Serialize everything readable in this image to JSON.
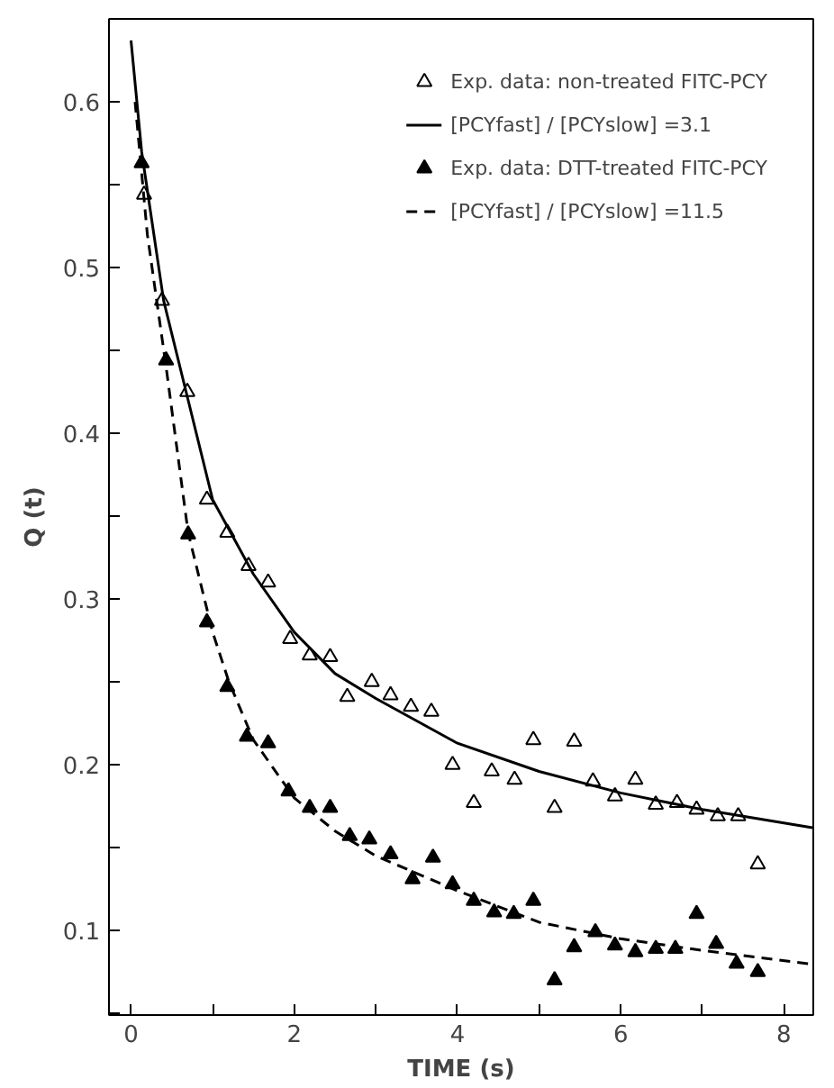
{
  "chart_data": {
    "type": "scatter",
    "xlabel": "TIME (s)",
    "ylabel": "Q (t)",
    "xlim": [
      -0.27,
      8.36
    ],
    "ylim": [
      0.049,
      0.65
    ],
    "xticks": [
      0,
      {
        "value": 1,
        "label": null
      },
      2,
      {
        "value": 3,
        "label": null
      },
      4,
      {
        "value": 5,
        "label": null
      },
      6,
      {
        "value": 7,
        "label": null
      },
      8
    ],
    "yticks": [
      {
        "value": 0.05,
        "label": null
      },
      0.1,
      {
        "value": 0.15,
        "label": null
      },
      0.2,
      {
        "value": 0.25,
        "label": null
      },
      0.3,
      {
        "value": 0.35,
        "label": null
      },
      0.4,
      {
        "value": 0.45,
        "label": null
      },
      0.5,
      {
        "value": 0.55,
        "label": null
      },
      0.6
    ],
    "grid": false,
    "legend": "top right",
    "series": [
      {
        "name": "Exp. data: non-treated FITC-PCY",
        "marker": "triangle",
        "color": "#000000",
        "x": [
          0.16,
          0.38,
          0.69,
          0.93,
          1.18,
          1.44,
          1.68,
          1.95,
          2.19,
          2.44,
          2.65,
          2.95,
          3.18,
          3.43,
          3.68,
          3.94,
          4.2,
          4.42,
          4.7,
          4.93,
          5.19,
          5.43,
          5.66,
          5.93,
          6.18,
          6.43,
          6.69,
          6.93,
          7.19,
          7.44,
          7.68
        ],
        "values": [
          0.544,
          0.48,
          0.425,
          0.36,
          0.34,
          0.32,
          0.31,
          0.276,
          0.266,
          0.265,
          0.241,
          0.25,
          0.242,
          0.235,
          0.232,
          0.2,
          0.177,
          0.196,
          0.191,
          0.215,
          0.174,
          0.214,
          0.19,
          0.181,
          0.191,
          0.176,
          0.177,
          0.173,
          0.169,
          0.169,
          0.14
        ]
      },
      {
        "name": "[PCYfast] / [PCYslow] =3.1",
        "type": "line",
        "line_style": "solid",
        "color": "#000000",
        "x": [
          0,
          0.13,
          0.4,
          0.7,
          1,
          1.5,
          2,
          2.5,
          3,
          4,
          5,
          6,
          7,
          8.35
        ],
        "values": [
          0.637,
          0.57,
          0.48,
          0.42,
          0.36,
          0.315,
          0.28,
          0.255,
          0.24,
          0.213,
          0.196,
          0.183,
          0.173,
          0.162
        ]
      },
      {
        "name": "Exp. data: DTT-treated FITC-PCY",
        "marker": "triangle",
        "color": "#000000",
        "x": [
          0.13,
          0.43,
          0.7,
          0.93,
          1.18,
          1.42,
          1.68,
          1.93,
          2.19,
          2.44,
          2.68,
          2.92,
          3.18,
          3.45,
          3.7,
          3.94,
          4.2,
          4.45,
          4.69,
          4.93,
          5.19,
          5.43,
          5.69,
          5.93,
          6.18,
          6.43,
          6.67,
          6.93,
          7.17,
          7.42,
          7.68
        ],
        "values": [
          0.563,
          0.444,
          0.339,
          0.286,
          0.247,
          0.217,
          0.213,
          0.184,
          0.174,
          0.174,
          0.157,
          0.155,
          0.146,
          0.131,
          0.144,
          0.128,
          0.118,
          0.111,
          0.11,
          0.118,
          0.07,
          0.09,
          0.099,
          0.091,
          0.087,
          0.089,
          0.089,
          0.11,
          0.092,
          0.08,
          0.075
        ]
      },
      {
        "name": "[PCYfast] / [PCYslow] =11.5",
        "type": "line",
        "line_style": "dashed",
        "color": "#000000",
        "x": [
          0.05,
          0.2,
          0.43,
          0.7,
          1,
          1.2,
          1.5,
          2,
          2.5,
          3,
          4,
          5,
          6,
          7,
          8.3
        ],
        "values": [
          0.6,
          0.52,
          0.44,
          0.34,
          0.28,
          0.25,
          0.215,
          0.18,
          0.16,
          0.145,
          0.124,
          0.105,
          0.095,
          0.088,
          0.08
        ]
      }
    ]
  }
}
